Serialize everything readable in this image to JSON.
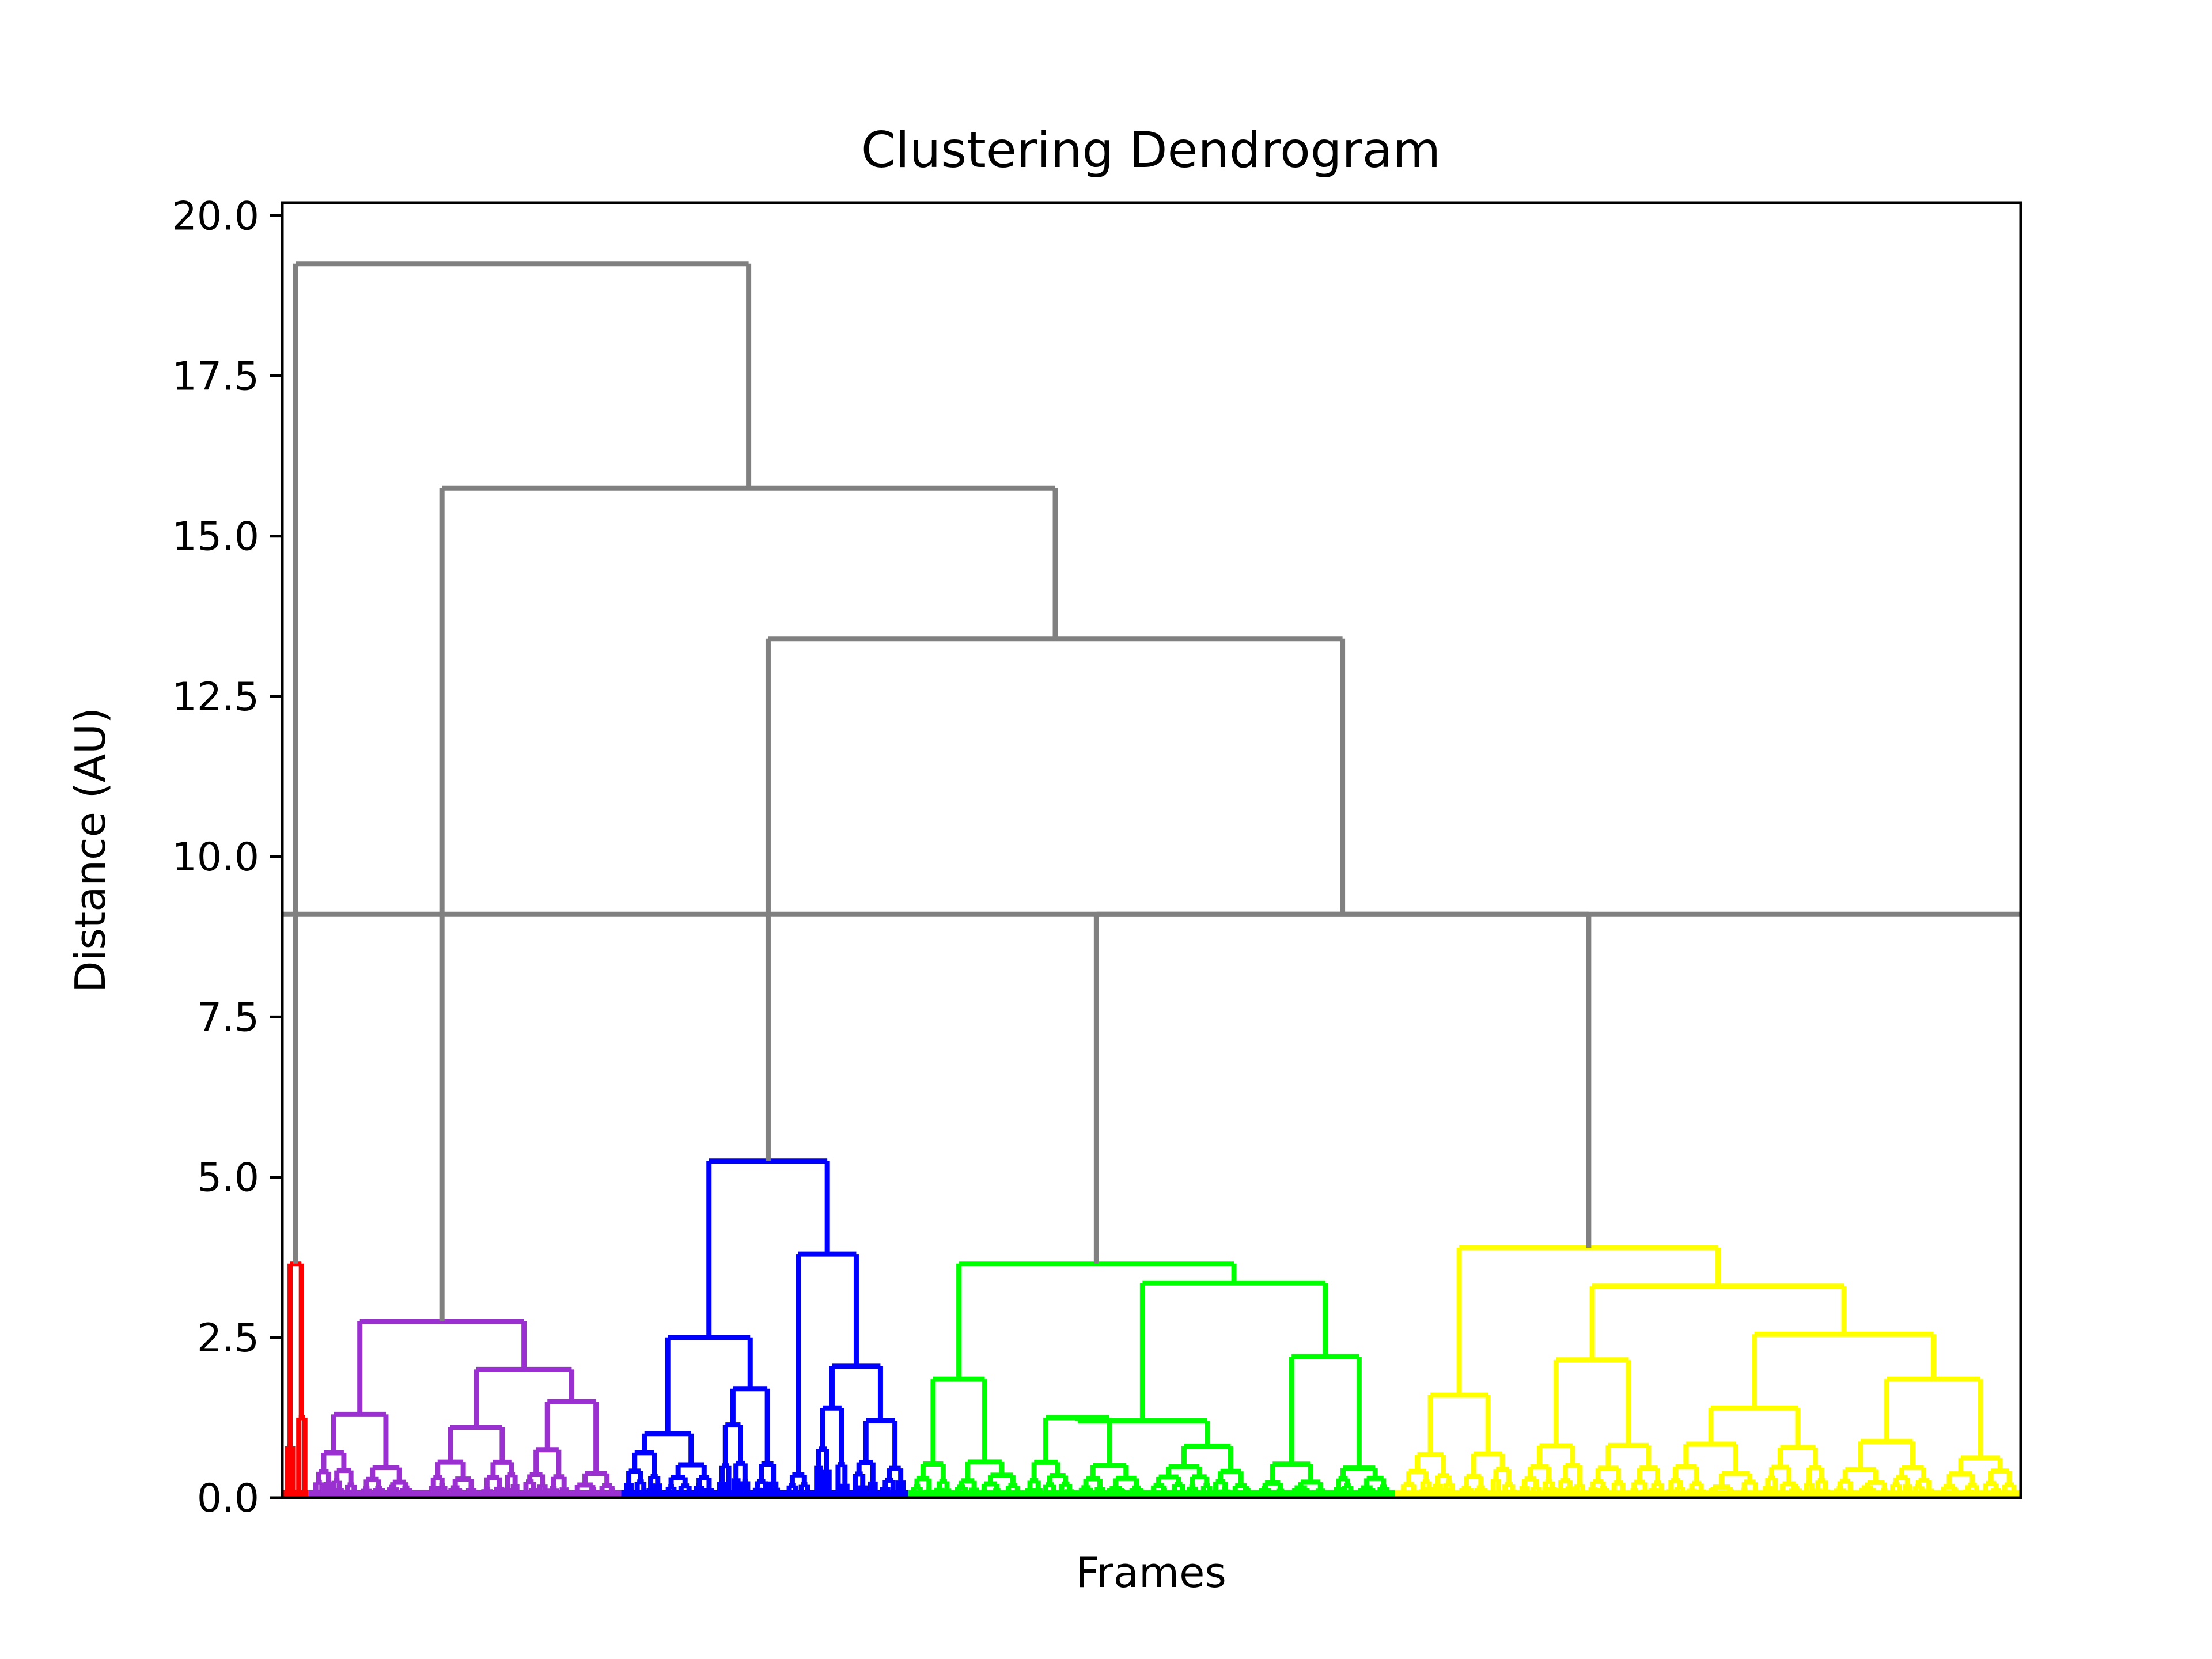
{
  "chart_data": {
    "type": "dendrogram",
    "title": "Clustering Dendrogram",
    "xlabel": "Frames",
    "ylabel": "Distance (AU)",
    "ylim": [
      0,
      20.2
    ],
    "yticks": [
      "0.0",
      "2.5",
      "5.0",
      "7.5",
      "10.0",
      "12.5",
      "15.0",
      "17.5",
      "20.0"
    ],
    "ytick_values": [
      0,
      2.5,
      5,
      7.5,
      10,
      12.5,
      15,
      17.5,
      20
    ],
    "threshold": 9.1,
    "colors": {
      "link_above_threshold": "#808080",
      "cluster_red": "#ff0000",
      "cluster_purple": "#9b30d0",
      "cluster_blue": "#0000ff",
      "cluster_green": "#00ff00",
      "cluster_yellow": "#ffff00"
    },
    "clusters": [
      {
        "color": "#ff0000",
        "root_height": 3.65,
        "leaf_range": [
          0.0,
          1.5
        ]
      },
      {
        "color": "#9b30d0",
        "root_height": 2.75,
        "leaf_range": [
          1.5,
          19.5
        ]
      },
      {
        "color": "#0000ff",
        "root_height": 5.25,
        "leaf_range": [
          19.5,
          36.0
        ]
      },
      {
        "color": "#00ff00",
        "root_height": 3.65,
        "leaf_range": [
          36.0,
          64.0
        ]
      },
      {
        "color": "#ffff00",
        "root_height": 3.9,
        "leaf_range": [
          64.0,
          100.0
        ]
      }
    ],
    "upper_merges": [
      {
        "children": [
          "blue",
          "green+yellow"
        ],
        "height": 13.4
      },
      {
        "children": [
          "purple",
          "blue+green+yellow"
        ],
        "height": 15.75
      },
      {
        "children": [
          "red",
          "rest"
        ],
        "height": 19.25
      }
    ]
  }
}
